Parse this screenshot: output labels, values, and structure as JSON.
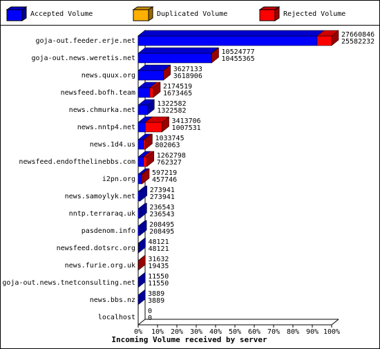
{
  "chart_data": {
    "type": "bar3d_stacked_horizontal",
    "x_label": "Incoming Volume received by server",
    "categories": [
      "goja-out.feeder.erje.net",
      "goja-out.news.weretis.net",
      "news.quux.org",
      "newsfeed.bofh.team",
      "news.chmurka.net",
      "news.nntp4.net",
      "news.1d4.us",
      "newsfeed.endofthelinebbs.com",
      "i2pn.org",
      "news.samoylyk.net",
      "nntp.terraraq.uk",
      "pasdenom.info",
      "newsfeed.dotsrc.org",
      "news.furie.org.uk",
      "goja-out.news.tnetconsulting.net",
      "news.bbs.nz",
      "localhost"
    ],
    "series": [
      {
        "name": "Accepted Volume",
        "color": "#0000ff",
        "values": [
          25582232,
          10455365,
          3618906,
          1673465,
          1322582,
          1007531,
          802063,
          762327,
          457746,
          273941,
          236543,
          208495,
          48121,
          19435,
          11550,
          3889,
          0
        ]
      },
      {
        "name": "Duplicated Volume",
        "color": "#ffb000",
        "values": [
          0,
          0,
          0,
          0,
          0,
          0,
          0,
          0,
          0,
          0,
          0,
          0,
          0,
          0,
          0,
          0,
          0
        ]
      },
      {
        "name": "Rejected Volume",
        "color": "#ff0000",
        "values": [
          2078614,
          69412,
          8227,
          501054,
          0,
          2406175,
          231682,
          500471,
          139473,
          0,
          0,
          0,
          0,
          12197,
          0,
          0,
          0
        ]
      }
    ],
    "totals": [
      27660846,
      10524777,
      3627133,
      2174519,
      1322582,
      3413706,
      1033745,
      1262798,
      597219,
      273941,
      236543,
      208495,
      48121,
      31632,
      11550,
      3889,
      0
    ],
    "xlim": [
      0,
      100
    ],
    "xticks": [
      {
        "value": 0,
        "label": "0%"
      },
      {
        "value": 10,
        "label": "10%"
      },
      {
        "value": 20,
        "label": "20%"
      },
      {
        "value": 30,
        "label": "30%"
      },
      {
        "value": 40,
        "label": "40%"
      },
      {
        "value": 50,
        "label": "50%"
      },
      {
        "value": 60,
        "label": "60%"
      },
      {
        "value": 70,
        "label": "70%"
      },
      {
        "value": 80,
        "label": "80%"
      },
      {
        "value": 90,
        "label": "90%"
      },
      {
        "value": 100,
        "label": "100%"
      }
    ]
  }
}
